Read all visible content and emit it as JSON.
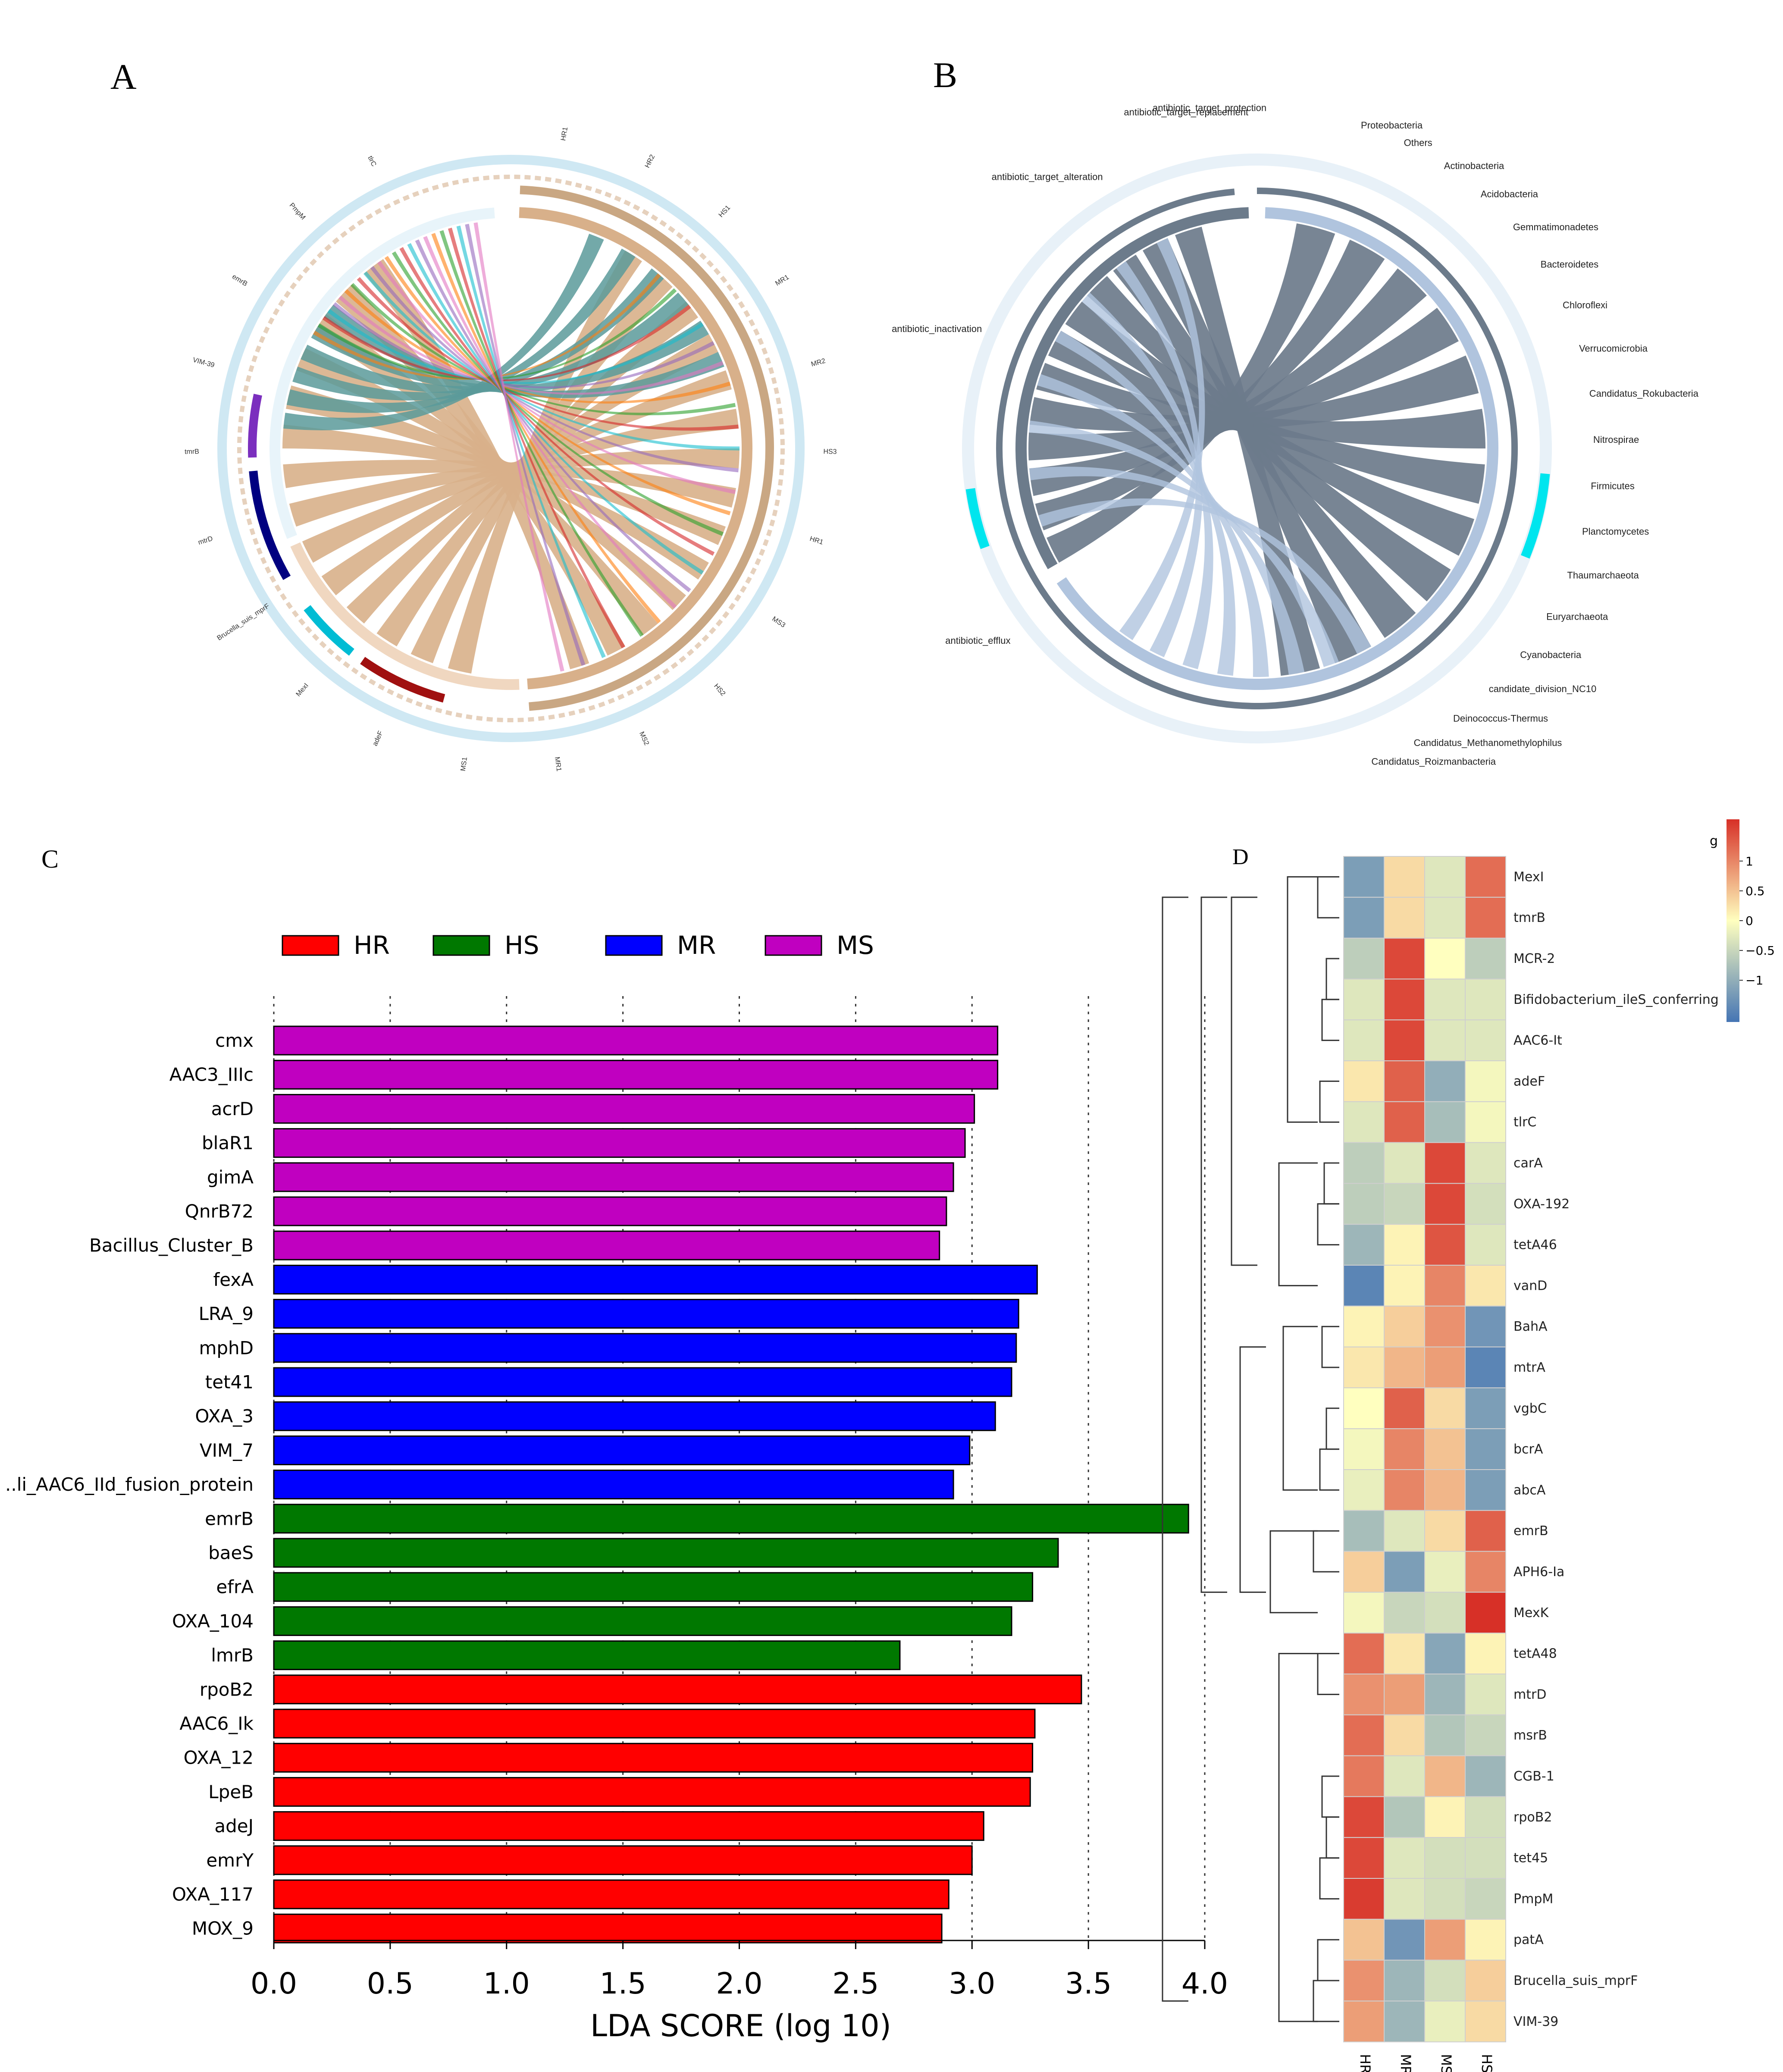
{
  "panels": {
    "a_letter": "A",
    "b_letter": "B",
    "c_letter": "C",
    "d_letter": "D"
  },
  "panel_a": {
    "segment_labels": [
      "HR1",
      "HR2",
      "HS1",
      "MR1",
      "MR2",
      "HS3",
      "HR1",
      "MS3",
      "HS2",
      "MS2",
      "MR1",
      "MS1",
      "adeF",
      "MexI",
      "Brucella_suis_mprF",
      "mtrD",
      "tmrB",
      "VIM-39",
      "emrB",
      "PmpM",
      "tlrC"
    ]
  },
  "panel_b": {
    "mechanism_labels": [
      "antibiotic_target_alteration",
      "antibiotic_target_replacement",
      "antibiotic_target_protection",
      "antibiotic_inactivation",
      "antibiotic_efflux"
    ],
    "phylum_labels": [
      "Proteobacteria",
      "Others",
      "Actinobacteria",
      "Acidobacteria",
      "Gemmatimonadetes",
      "Bacteroidetes",
      "Chloroflexi",
      "Verrucomicrobia",
      "Candidatus_Rokubacteria",
      "Nitrospirae",
      "Firmicutes",
      "Planctomycetes",
      "Thaumarchaeota",
      "Euryarchaeota",
      "Cyanobacteria",
      "candidate_division_NC10",
      "Deinococcus-Thermus",
      "Candidatus_Methanomethylophilus",
      "Candidatus_Roizmanbacteria"
    ]
  },
  "colors": {
    "HR": "#ff0000",
    "HS": "#007800",
    "MR": "#0000ff",
    "MS": "#c000c0",
    "chord_tan": "#d8b08a",
    "chord_teal": "#5a9a9a",
    "chord_gray": "#6c7b8b"
  },
  "chart_data": [
    {
      "type": "bar",
      "orientation": "horizontal",
      "title": "",
      "xlabel": "LDA SCORE (log 10)",
      "ylabel": "",
      "xlim": [
        0,
        4.0
      ],
      "xticks": [
        "0.0",
        "0.5",
        "1.0",
        "1.5",
        "2.0",
        "2.5",
        "3.0",
        "3.5",
        "4.0"
      ],
      "legend": [
        "HR",
        "HS",
        "MR",
        "MS"
      ],
      "legend_position": "top",
      "categories": [
        "cmx",
        "AAC3_IIIc",
        "acrD",
        "blaR1",
        "gimA",
        "QnrB72",
        "Bacillus_Cluster_B",
        "fexA",
        "LRA_9",
        "mphD",
        "tet41",
        "OXA_3",
        "VIM_7",
        "..li_AAC6_IId_fusion_protein",
        "emrB",
        "baeS",
        "efrA",
        "OXA_104",
        "lmrB",
        "rpoB2",
        "AAC6_Ik",
        "OXA_12",
        "LpeB",
        "adeJ",
        "emrY",
        "OXA_117",
        "MOX_9"
      ],
      "groups": [
        "MS",
        "MS",
        "MS",
        "MS",
        "MS",
        "MS",
        "MS",
        "MR",
        "MR",
        "MR",
        "MR",
        "MR",
        "MR",
        "MR",
        "HS",
        "HS",
        "HS",
        "HS",
        "HS",
        "HR",
        "HR",
        "HR",
        "HR",
        "HR",
        "HR",
        "HR",
        "HR"
      ],
      "values": [
        3.11,
        3.11,
        3.01,
        2.97,
        2.92,
        2.89,
        2.86,
        3.28,
        3.2,
        3.19,
        3.17,
        3.1,
        2.99,
        2.92,
        3.93,
        3.37,
        3.26,
        3.17,
        2.69,
        3.47,
        3.27,
        3.26,
        3.25,
        3.05,
        3.0,
        2.9,
        2.87
      ]
    },
    {
      "type": "heatmap",
      "columns": [
        "HR",
        "MR",
        "MS",
        "HS"
      ],
      "rows": [
        "MexI",
        "tmrB",
        "MCR-2",
        "Bifidobacterium_ileS_conferring",
        "AAC6-It",
        "adeF",
        "tlrC",
        "carA",
        "OXA-192",
        "tetA46",
        "vanD",
        "BahA",
        "mtrA",
        "vgbC",
        "bcrA",
        "abcA",
        "emrB",
        "APH6-Ia",
        "MexK",
        "tetA48",
        "mtrD",
        "msrB",
        "CGB-1",
        "rpoB2",
        "tet45",
        "PmpM",
        "patA",
        "Brucella_suis_mprF",
        "VIM-39"
      ],
      "values": [
        [
          -1.2,
          0.3,
          -0.3,
          1.2
        ],
        [
          -1.2,
          0.3,
          -0.3,
          1.2
        ],
        [
          -0.6,
          1.5,
          0.0,
          -0.6
        ],
        [
          -0.3,
          1.5,
          -0.3,
          -0.3
        ],
        [
          -0.3,
          1.5,
          -0.3,
          -0.3
        ],
        [
          0.2,
          1.3,
          -1.0,
          -0.1
        ],
        [
          -0.3,
          1.3,
          -0.8,
          -0.1
        ],
        [
          -0.6,
          -0.3,
          1.5,
          -0.3
        ],
        [
          -0.6,
          -0.5,
          1.5,
          -0.4
        ],
        [
          -0.9,
          0.1,
          1.4,
          -0.3
        ],
        [
          -1.5,
          0.1,
          1.0,
          0.2
        ],
        [
          0.1,
          0.4,
          0.9,
          -1.3
        ],
        [
          0.2,
          0.6,
          0.8,
          -1.5
        ],
        [
          0.0,
          1.3,
          0.3,
          -1.2
        ],
        [
          -0.1,
          1.0,
          0.5,
          -1.2
        ],
        [
          -0.2,
          1.0,
          0.6,
          -1.2
        ],
        [
          -0.8,
          -0.3,
          0.3,
          1.3
        ],
        [
          0.4,
          -1.2,
          -0.2,
          1.0
        ],
        [
          -0.1,
          -0.5,
          -0.4,
          1.7
        ],
        [
          1.2,
          0.2,
          -1.1,
          0.1
        ],
        [
          0.9,
          0.8,
          -0.9,
          -0.3
        ],
        [
          1.2,
          0.3,
          -0.7,
          -0.5
        ],
        [
          1.1,
          -0.3,
          0.6,
          -0.9
        ],
        [
          1.5,
          -0.7,
          0.1,
          -0.4
        ],
        [
          1.5,
          -0.3,
          -0.4,
          -0.4
        ],
        [
          1.6,
          -0.3,
          -0.4,
          -0.5
        ],
        [
          0.5,
          -1.3,
          0.8,
          0.1
        ],
        [
          0.9,
          -0.9,
          -0.4,
          0.4
        ],
        [
          0.8,
          -0.9,
          -0.2,
          0.3
        ]
      ],
      "colorbar": {
        "title": "g",
        "ticks": [
          "1",
          "0.5",
          "0",
          "−0.5",
          "−1"
        ],
        "range": [
          -1.7,
          1.7
        ],
        "low_color": "#4575b4",
        "mid_color": "#ffffbf",
        "high_color": "#d73027"
      }
    }
  ]
}
